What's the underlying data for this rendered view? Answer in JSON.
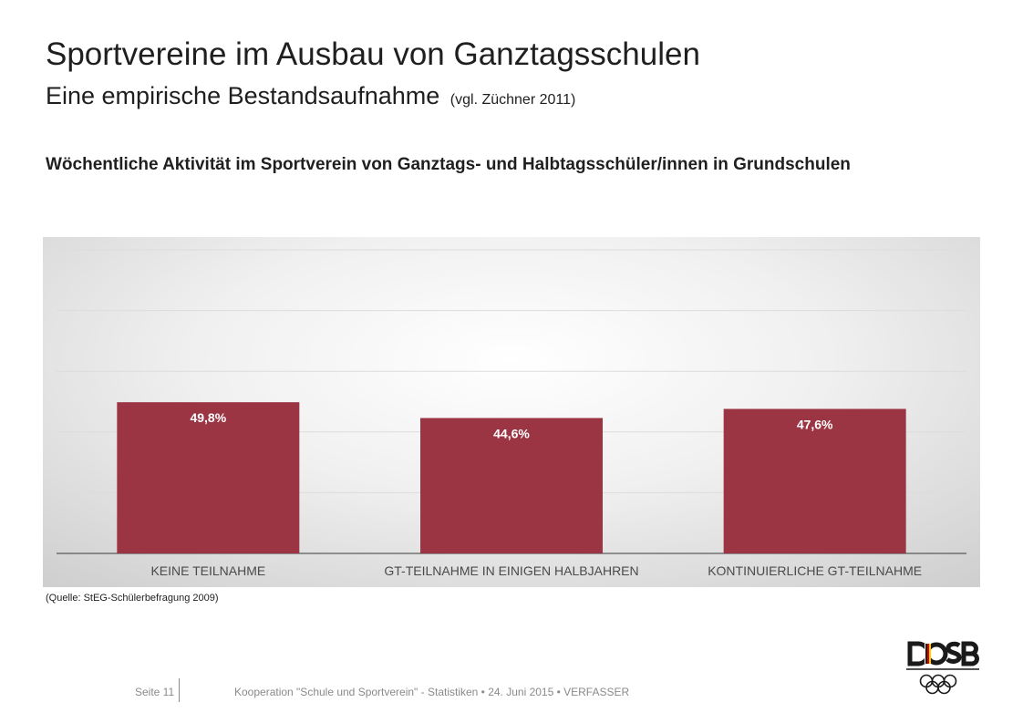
{
  "header": {
    "title": "Sportvereine im Ausbau von Ganztagsschulen",
    "subtitle": "Eine empirische Bestandsaufnahme",
    "subtitle_note": "(vgl. Züchner 2011)"
  },
  "chart_heading": "Wöchentliche Aktivität im Sportverein von Ganztags- und Halbtagsschüler/innen in Grundschulen",
  "chart_data": {
    "type": "bar",
    "categories": [
      "KEINE TEILNAHME",
      "GT-TEILNAHME IN EINIGEN HALBJAHREN",
      "KONTINUIERLICHE GT-TEILNAHME"
    ],
    "values": [
      49.8,
      44.6,
      47.6
    ],
    "data_labels": [
      "49,8%",
      "44,6%",
      "47,6%"
    ],
    "ylim": [
      0,
      100
    ],
    "grid": true,
    "bar_color": "#9b3544",
    "title": "",
    "xlabel": "",
    "ylabel": ""
  },
  "source": "(Quelle: StEG-Schülerbefragung 2009)",
  "footer": {
    "page": "Seite 11",
    "text": "Kooperation \"Schule und Sportverein\" - Statistiken • 24. Juni 2015 • VERFASSER"
  },
  "logo": {
    "text": "DOSB",
    "accent_colors": [
      "#000000",
      "#dd0000",
      "#ffcc00"
    ]
  }
}
